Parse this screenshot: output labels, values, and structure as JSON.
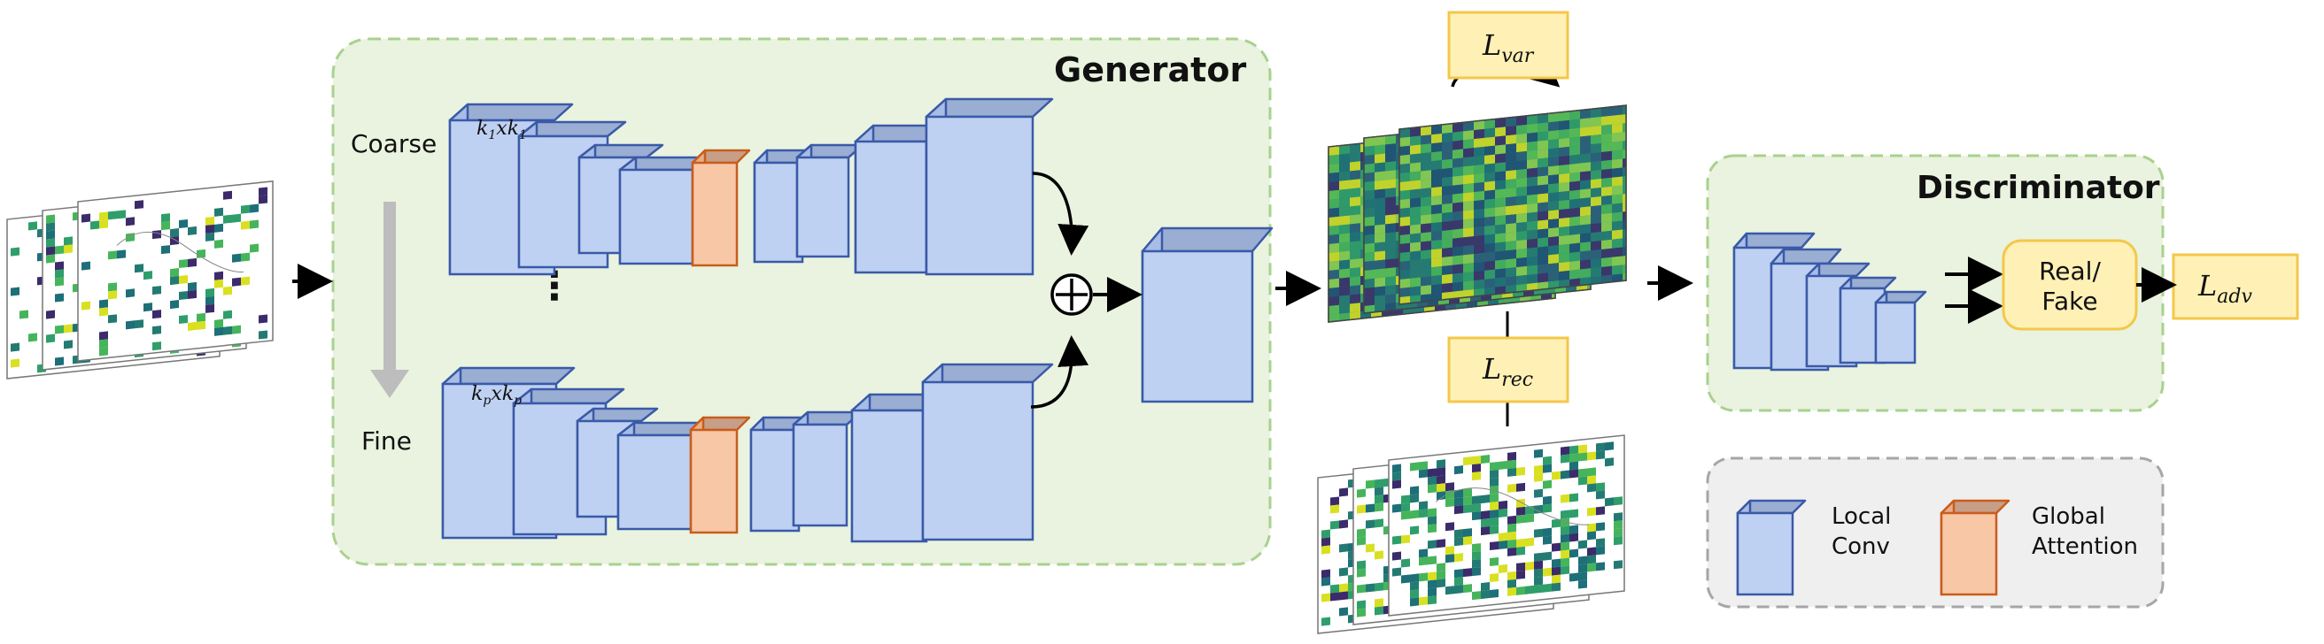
{
  "generator": {
    "title": "Generator",
    "coarse_label": "Coarse",
    "fine_label": "Fine",
    "ellipsis": "⋮",
    "kernel_top": {
      "base": "k",
      "sub": "1",
      "times": "x"
    },
    "kernel_bottom": {
      "base": "k",
      "sub": "p",
      "times": "x"
    }
  },
  "discriminator": {
    "title": "Discriminator",
    "output_line1": "Real/",
    "output_line2": "Fake"
  },
  "losses": {
    "var": {
      "base": "L",
      "sub": "var"
    },
    "rec": {
      "base": "L",
      "sub": "rec"
    },
    "adv": {
      "base": "L",
      "sub": "adv"
    }
  },
  "legend": {
    "local_line1": "Local",
    "local_line2": "Conv",
    "global_line1": "Global",
    "global_line2": "Attention"
  },
  "colors": {
    "generator_bg": "#e9f3df",
    "generator_border": "#a9d18e",
    "conv_face": "#bfd1f2",
    "conv_top": "#9aaed3",
    "conv_side": "#a7bde6",
    "conv_stroke": "#3a5aa8",
    "attn_face": "#f7c7a6",
    "attn_top": "#c79f88",
    "attn_side": "#e8ae88",
    "attn_stroke": "#c85d1c",
    "loss_fill": "#fff1b6",
    "loss_stroke": "#f4c74a",
    "legend_bg": "#efefef",
    "legend_border": "#a6a6a6"
  }
}
